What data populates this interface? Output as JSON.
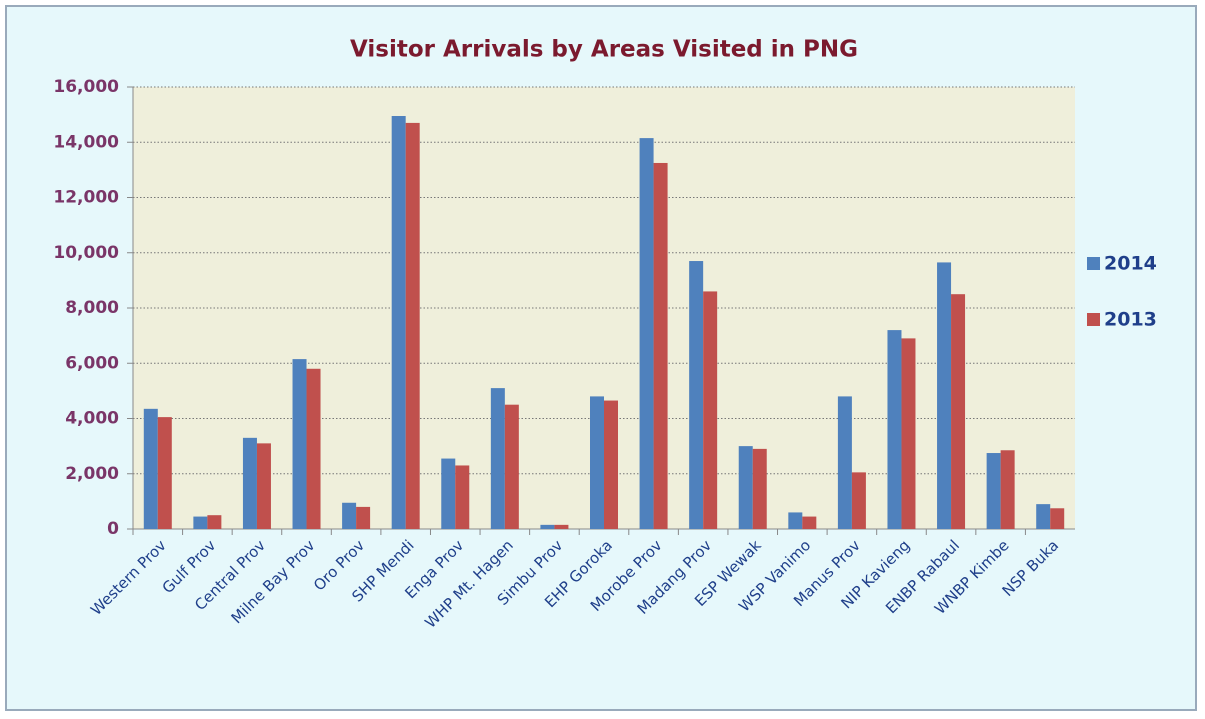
{
  "chart_data": {
    "type": "bar",
    "title": "Visitor Arrivals  by Areas Visited in PNG",
    "categories": [
      "Western Prov",
      "Gulf Prov",
      "Central Prov",
      "Milne Bay Prov",
      "Oro Prov",
      "SHP Mendi",
      "Enga Prov",
      "WHP Mt. Hagen",
      "Simbu Prov",
      "EHP Goroka",
      "Morobe Prov",
      "Madang Prov",
      "ESP Wewak",
      "WSP Vanimo",
      "Manus Prov",
      "NIP Kavieng",
      "ENBP Rabaul",
      "WNBP Kimbe",
      "NSP Buka"
    ],
    "series": [
      {
        "name": "2014",
        "color": "#4f81bd",
        "values": [
          4350,
          450,
          3300,
          6150,
          950,
          14950,
          2550,
          5100,
          150,
          4800,
          14150,
          9700,
          3000,
          600,
          4800,
          7200,
          9650,
          2750,
          900
        ]
      },
      {
        "name": "2013",
        "color": "#c0504d",
        "values": [
          4050,
          500,
          3100,
          5800,
          800,
          14700,
          2300,
          4500,
          150,
          4650,
          13250,
          8600,
          2900,
          450,
          2050,
          6900,
          8500,
          2850,
          750
        ]
      }
    ],
    "ylim": [
      0,
      16000
    ],
    "yticks": [
      0,
      {
        "value": 2000,
        "label": "2,000"
      },
      {
        "value": 4000,
        "label": "4,000"
      },
      {
        "value": 6000,
        "label": "6,000"
      },
      {
        "value": 8000,
        "label": "8,000"
      },
      {
        "value": 10000,
        "label": "10,000"
      },
      {
        "value": 12000,
        "label": "12,000"
      },
      {
        "value": 14000,
        "label": "14,000"
      },
      {
        "value": 16000,
        "label": "16,000"
      }
    ],
    "grid": true,
    "legend": "right"
  }
}
